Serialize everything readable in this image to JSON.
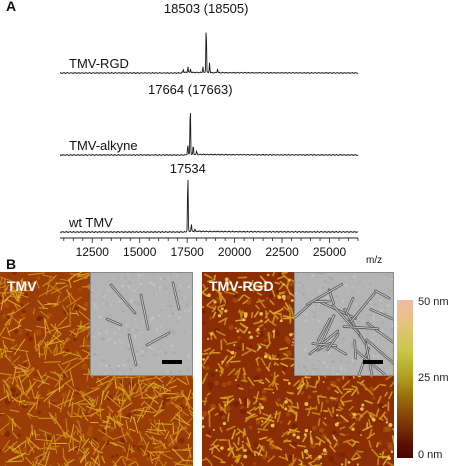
{
  "panel_a": {
    "letter": "A",
    "spectra": [
      {
        "label": "TMV-RGD",
        "peak_label": "18503 (18505)",
        "main_peak": 18503
      },
      {
        "label": "TMV-alkyne",
        "peak_label": "17664 (17663)",
        "main_peak": 17664
      },
      {
        "label": "wt TMV",
        "peak_label": "17534",
        "main_peak": 17534
      }
    ],
    "x_axis": {
      "unit": "m/z",
      "ticks": [
        "12500",
        "15000",
        "17500",
        "20000",
        "22500",
        "25000"
      ],
      "tick_values": [
        12500,
        15000,
        17500,
        20000,
        22500,
        25000
      ],
      "range": [
        10800,
        26500
      ]
    }
  },
  "panel_b": {
    "letter": "B",
    "images": [
      {
        "title": "TMV"
      },
      {
        "title": "TMV-RGD"
      }
    ],
    "colorbar": {
      "labels": [
        "50 nm",
        "25 nm",
        "0 nm"
      ],
      "colors": [
        "#f2b9a9",
        "#c8c84a",
        "#9a6b08",
        "#5a0e04"
      ]
    }
  },
  "chart_data": {
    "type": "line",
    "xlabel": "m/z",
    "xlim": [
      10800,
      26500
    ],
    "series": [
      {
        "name": "TMV-RGD",
        "peaks": [
          {
            "x": 17300,
            "y": 0.06
          },
          {
            "x": 17540,
            "y": 0.12
          },
          {
            "x": 17680,
            "y": 0.07
          },
          {
            "x": 18330,
            "y": 0.12
          },
          {
            "x": 18503,
            "y": 1.0
          },
          {
            "x": 18680,
            "y": 0.2
          },
          {
            "x": 19100,
            "y": 0.08
          }
        ]
      },
      {
        "name": "TMV-alkyne",
        "peaks": [
          {
            "x": 17534,
            "y": 0.2
          },
          {
            "x": 17664,
            "y": 1.0
          },
          {
            "x": 17820,
            "y": 0.18
          },
          {
            "x": 18000,
            "y": 0.06
          }
        ]
      },
      {
        "name": "wt TMV",
        "peaks": [
          {
            "x": 17534,
            "y": 1.0
          },
          {
            "x": 17720,
            "y": 0.12
          },
          {
            "x": 17900,
            "y": 0.04
          }
        ]
      }
    ]
  }
}
